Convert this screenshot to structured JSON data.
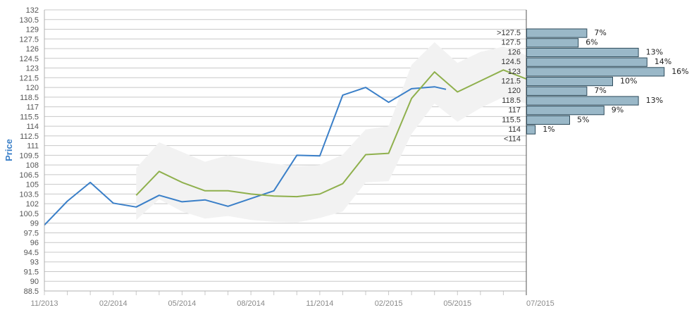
{
  "chart_data": {
    "type": "line",
    "ylabel": "Price",
    "ylim": [
      88.5,
      132
    ],
    "y_ticks": [
      88.5,
      90,
      91.5,
      93,
      94.5,
      96,
      97.5,
      99,
      100.5,
      102,
      103.5,
      105,
      106.5,
      108,
      109.5,
      111,
      112.5,
      114,
      115.5,
      117,
      118.5,
      120,
      121.5,
      123,
      124.5,
      126,
      127.5,
      129,
      130.5,
      132
    ],
    "y_tick_labels": [
      "88.5",
      "90",
      "91.5",
      "93",
      "94.5",
      "96",
      "97.5",
      "99",
      "100.5",
      "102",
      "103.5",
      "105",
      "106.5",
      "108",
      "109.5",
      "111",
      "112.5",
      "114",
      "115.5",
      "117",
      "118.5",
      "120",
      "121.5",
      "123",
      "124.5",
      "126",
      "127.5",
      "129",
      "130.5",
      "132"
    ],
    "x_tick_labels": [
      "11/2013",
      "02/2014",
      "05/2014",
      "08/2014",
      "11/2014",
      "02/2015",
      "05/2015",
      "07/2015"
    ],
    "x_range_index": [
      0,
      21
    ],
    "x_tick_index": [
      0,
      3,
      6,
      9,
      12,
      15,
      18,
      21
    ],
    "grid": true,
    "series": [
      {
        "color": "#3a7fc8",
        "x_index": [
          0,
          1,
          2,
          3,
          4,
          5,
          6,
          7,
          8,
          9,
          10,
          11,
          12,
          13,
          14,
          15,
          16,
          17,
          17.5
        ],
        "values": [
          98.7,
          102.4,
          105.3,
          102.1,
          101.5,
          103.3,
          102.3,
          102.6,
          101.6,
          102.8,
          104.0,
          109.5,
          109.4,
          118.8,
          120.0,
          117.7,
          119.8,
          120.1,
          119.7
        ]
      },
      {
        "color": "#8fb04d",
        "x_index": [
          4,
          5,
          6,
          7,
          8,
          9,
          10,
          11,
          12,
          13,
          14,
          15,
          16,
          17,
          18,
          19,
          20,
          21
        ],
        "values": [
          103.3,
          107.0,
          105.3,
          104.0,
          104.0,
          103.5,
          103.2,
          103.1,
          103.5,
          105.1,
          109.6,
          109.8,
          118.3,
          122.4,
          119.3,
          121.0,
          122.7,
          121.3
        ]
      }
    ],
    "band": {
      "color": "#f2f2f2",
      "x_index": [
        4,
        5,
        6,
        7,
        8,
        9,
        10,
        11,
        12,
        13,
        14,
        15,
        16,
        17,
        18,
        19,
        20,
        21
      ],
      "upper": [
        107.5,
        111.5,
        110.0,
        108.5,
        109.5,
        108.7,
        108.2,
        107.8,
        108.0,
        109.6,
        113.5,
        114.0,
        123.5,
        127.0,
        123.8,
        125.5,
        126.3,
        125.0
      ],
      "lower": [
        99.5,
        102.7,
        100.8,
        99.7,
        100.1,
        99.5,
        99.2,
        99.1,
        99.8,
        100.8,
        105.3,
        105.5,
        112.8,
        117.5,
        114.7,
        116.8,
        118.5,
        117.5
      ]
    },
    "histogram": {
      "color": "#9ab8c8",
      "border": "#2c4a5a",
      "bins": [
        {
          "label": ">127.5",
          "pct": 7,
          "pct_label": "7%"
        },
        {
          "label": "127.5",
          "pct": 6,
          "pct_label": "6%"
        },
        {
          "label": "126",
          "pct": 13,
          "pct_label": "13%"
        },
        {
          "label": "124.5",
          "pct": 14,
          "pct_label": "14%"
        },
        {
          "label": "123",
          "pct": 16,
          "pct_label": "16%"
        },
        {
          "label": "121.5",
          "pct": 10,
          "pct_label": "10%"
        },
        {
          "label": "120",
          "pct": 7,
          "pct_label": "7%"
        },
        {
          "label": "118.5",
          "pct": 13,
          "pct_label": "13%"
        },
        {
          "label": "117",
          "pct": 9,
          "pct_label": "9%"
        },
        {
          "label": "115.5",
          "pct": 5,
          "pct_label": "5%"
        },
        {
          "label": "114",
          "pct": 1,
          "pct_label": "1%"
        },
        {
          "label": "<114",
          "pct": 0,
          "pct_label": ""
        }
      ]
    }
  }
}
